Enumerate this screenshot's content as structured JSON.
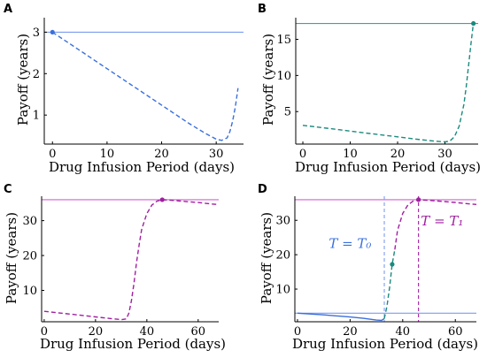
{
  "colors": {
    "blue": "#3a6fdc",
    "teal": "#1b8a7e",
    "purple": "#a01fa0",
    "blue_ref": "#7e9cf0",
    "teal_ref": "#35a79a",
    "purple_ref": "#d55fd5",
    "axis": "#000000"
  },
  "chart_data": [
    {
      "panel": "A",
      "type": "line",
      "xlabel": "Drug Infusion Period (days)",
      "ylabel": "Payoff (years)",
      "xlim": [
        -1.5,
        35
      ],
      "ylim": [
        0.3,
        3.35
      ],
      "xticks": [
        0,
        10,
        20,
        30
      ],
      "yticks": [
        1,
        2,
        3
      ],
      "reference_lines": [
        {
          "y": 3.0,
          "color": "blue_ref"
        }
      ],
      "series": [
        {
          "color": "blue",
          "style": "dashed",
          "x": [
            0,
            5,
            10,
            15,
            20,
            25,
            28,
            30,
            31,
            32,
            32.5,
            33,
            33.5,
            34
          ],
          "y": [
            3.0,
            2.56,
            2.12,
            1.68,
            1.24,
            0.8,
            0.56,
            0.42,
            0.39,
            0.45,
            0.6,
            0.85,
            1.2,
            1.65
          ]
        }
      ],
      "markers": [
        {
          "x": 0,
          "y": 3.0,
          "color": "blue"
        }
      ]
    },
    {
      "panel": "B",
      "type": "line",
      "xlabel": "Drug Infusion Period (days)",
      "ylabel": "Payoff (years)",
      "xlim": [
        -1.5,
        37
      ],
      "ylim": [
        0.5,
        18.0
      ],
      "xticks": [
        0,
        10,
        20,
        30
      ],
      "yticks": [
        5,
        10,
        15
      ],
      "reference_lines": [
        {
          "y": 17.2,
          "color": "teal_ref"
        }
      ],
      "series": [
        {
          "color": "teal",
          "style": "dashed",
          "x": [
            0,
            5,
            10,
            15,
            20,
            25,
            28,
            30,
            31,
            32,
            33,
            34,
            34.5,
            35,
            35.5,
            36
          ],
          "y": [
            3.1,
            2.7,
            2.3,
            1.9,
            1.5,
            1.1,
            0.9,
            0.8,
            0.9,
            1.5,
            3.0,
            6.0,
            8.5,
            11.5,
            14.5,
            17.2
          ]
        }
      ],
      "markers": [
        {
          "x": 36,
          "y": 17.2,
          "color": "teal"
        }
      ]
    },
    {
      "panel": "C",
      "type": "line",
      "xlabel": "Drug Infusion Period (days)",
      "ylabel": "Payoff (years)",
      "xlim": [
        -1,
        68
      ],
      "ylim": [
        1.0,
        37.0
      ],
      "xticks": [
        0,
        20,
        40,
        60
      ],
      "yticks": [
        10,
        20,
        30
      ],
      "reference_lines": [
        {
          "y": 36.0,
          "color": "purple_ref"
        }
      ],
      "series": [
        {
          "color": "purple",
          "style": "dashed",
          "x": [
            0,
            10,
            20,
            25,
            30,
            32,
            33,
            34,
            35,
            36,
            37,
            38,
            40,
            42,
            44,
            46,
            50,
            55,
            60,
            65,
            68
          ],
          "y": [
            4.0,
            3.2,
            2.4,
            2.0,
            1.6,
            1.8,
            3.5,
            7.0,
            12.0,
            18.0,
            23.0,
            27.5,
            32.0,
            34.5,
            35.6,
            36.0,
            35.8,
            35.5,
            35.2,
            34.8,
            34.6
          ]
        }
      ],
      "markers": [
        {
          "x": 46,
          "y": 36.0,
          "color": "purple"
        }
      ]
    },
    {
      "panel": "D",
      "type": "line",
      "xlabel": "Drug Infusion Period (days)",
      "ylabel": "Payoff (years)",
      "xlim": [
        -1,
        68
      ],
      "ylim": [
        0.5,
        37.0
      ],
      "xticks": [
        0,
        20,
        40,
        60
      ],
      "yticks": [
        10,
        20,
        30
      ],
      "reference_lines": [
        {
          "y": 3.0,
          "color": "blue_ref"
        },
        {
          "y": 36.0,
          "color": "purple_ref"
        }
      ],
      "vertical_lines": [
        {
          "x": 33,
          "color": "blue_ref"
        },
        {
          "x": 46,
          "color": "purple"
        }
      ],
      "series": [
        {
          "color": "blue",
          "style": "solid",
          "x": [
            0,
            10,
            20,
            25,
            30,
            32,
            33
          ],
          "y": [
            3.0,
            2.5,
            1.9,
            1.5,
            1.0,
            0.9,
            1.4
          ]
        },
        {
          "color": "teal",
          "style": "dashed",
          "x": [
            33,
            34,
            35,
            36,
            37
          ],
          "y": [
            1.4,
            5.0,
            10.5,
            17.2,
            21.5
          ]
        },
        {
          "color": "purple",
          "style": "dashed",
          "x": [
            37,
            38,
            40,
            42,
            44,
            46,
            50,
            55,
            60,
            65,
            68
          ],
          "y": [
            21.5,
            27.0,
            32.0,
            34.5,
            35.6,
            36.0,
            35.8,
            35.5,
            35.2,
            34.8,
            34.6
          ]
        }
      ],
      "markers": [
        {
          "x": 36,
          "y": 17.2,
          "color": "teal"
        },
        {
          "x": 46,
          "y": 36.0,
          "color": "purple"
        }
      ],
      "annotations": [
        {
          "text": "T = T₀",
          "x": 20,
          "y": 22,
          "color": "blue"
        },
        {
          "text": "T = T₁",
          "x": 55,
          "y": 28.5,
          "color": "purple"
        }
      ]
    }
  ],
  "panels": [
    {
      "letter": "A",
      "xlabel": "Drug Infusion Period (days)",
      "ylabel": "Payoff (years)"
    },
    {
      "letter": "B",
      "xlabel": "Drug Infusion Period (days)",
      "ylabel": "Payoff (years)"
    },
    {
      "letter": "C",
      "xlabel": "Drug Infusion Period (days)",
      "ylabel": "Payoff (years)"
    },
    {
      "letter": "D",
      "xlabel": "Drug Infusion Period (days)",
      "ylabel": "Payoff (years)"
    }
  ]
}
